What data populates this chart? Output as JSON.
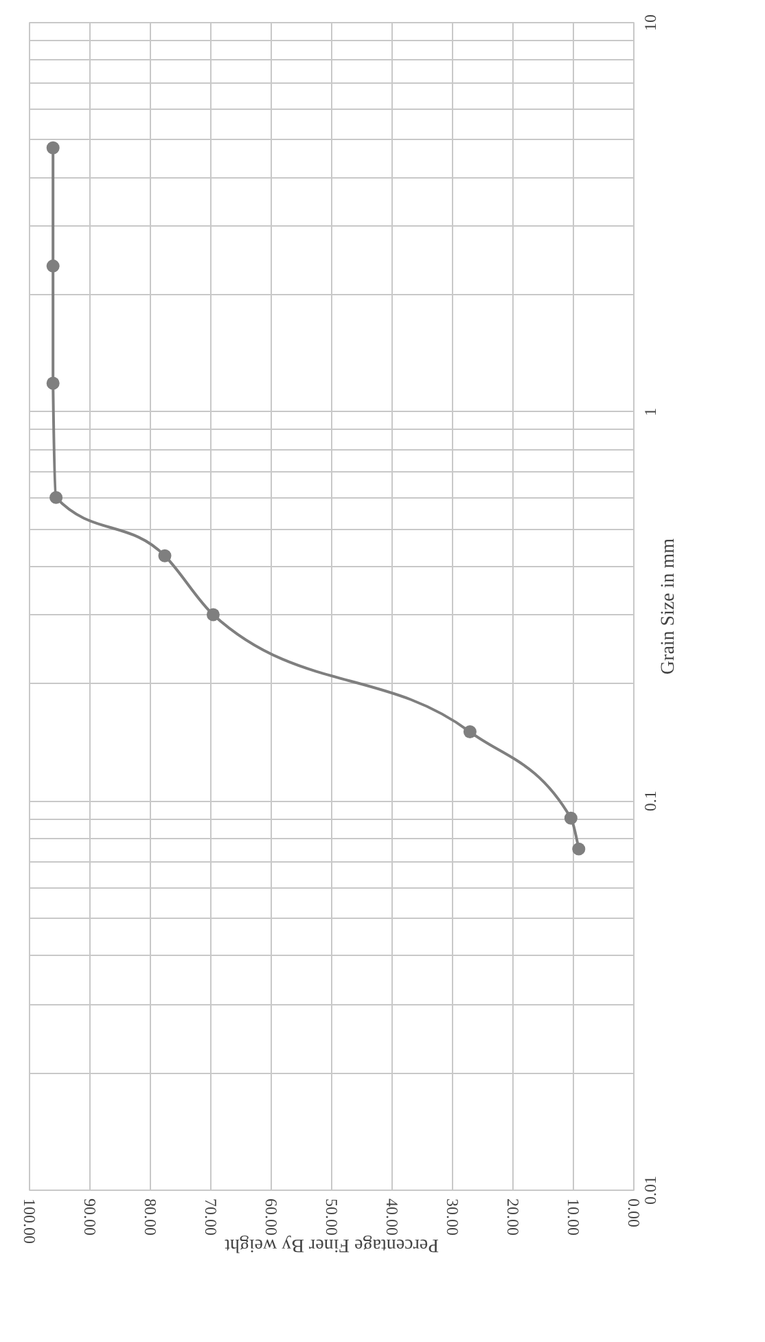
{
  "chart_data": {
    "type": "line",
    "xlabel": "Percentage Finer By weight",
    "ylabel": "Grain Size in mm",
    "log": "y",
    "grid": true,
    "marker": "circle",
    "line_style": "solid",
    "ylim": [
      0.01,
      10
    ],
    "yticks": [
      0.01,
      {
        "value": 0.02,
        "label": null
      },
      {
        "value": 0.03,
        "label": null
      },
      {
        "value": 0.04,
        "label": null
      },
      {
        "value": 0.05,
        "label": null
      },
      {
        "value": 0.06,
        "label": null
      },
      {
        "value": 0.07,
        "label": null
      },
      {
        "value": 0.08,
        "label": null
      },
      {
        "value": 0.09,
        "label": null
      },
      0.1,
      {
        "value": 0.2,
        "label": null
      },
      {
        "value": 0.3,
        "label": null
      },
      {
        "value": 0.4,
        "label": null
      },
      {
        "value": 0.5,
        "label": null
      },
      {
        "value": 0.6,
        "label": null
      },
      {
        "value": 0.7,
        "label": null
      },
      {
        "value": 0.8,
        "label": null
      },
      {
        "value": 0.9,
        "label": null
      },
      1,
      {
        "value": 2,
        "label": null
      },
      {
        "value": 3,
        "label": null
      },
      {
        "value": 4,
        "label": null
      },
      {
        "value": 5,
        "label": null
      },
      {
        "value": 6,
        "label": null
      },
      {
        "value": 7,
        "label": null
      },
      {
        "value": 8,
        "label": null
      },
      {
        "value": 9,
        "label": null
      },
      10
    ],
    "xlim": [
      100,
      0
    ],
    "xticks": [
      {
        "value": 100,
        "label": "100.00"
      },
      {
        "value": 90,
        "label": "90.00"
      },
      {
        "value": 80,
        "label": "80.00"
      },
      {
        "value": 70,
        "label": "70.00"
      },
      {
        "value": 60,
        "label": "60.00"
      },
      {
        "value": 50,
        "label": "50.00"
      },
      {
        "value": 40,
        "label": "40.00"
      },
      {
        "value": 30,
        "label": "30.00"
      },
      {
        "value": 20,
        "label": "20.00"
      },
      {
        "value": 10,
        "label": "10.00"
      },
      {
        "value": 0,
        "label": "0.00"
      }
    ],
    "series": [
      {
        "color": "#7f7f7f",
        "x": [
          9,
          10.3,
          27,
          69.5,
          77.5,
          95.5,
          96,
          96,
          96
        ],
        "values": [
          0.075,
          0.09,
          0.15,
          0.3,
          0.425,
          0.6,
          1.18,
          2.36,
          4.75
        ]
      }
    ]
  }
}
